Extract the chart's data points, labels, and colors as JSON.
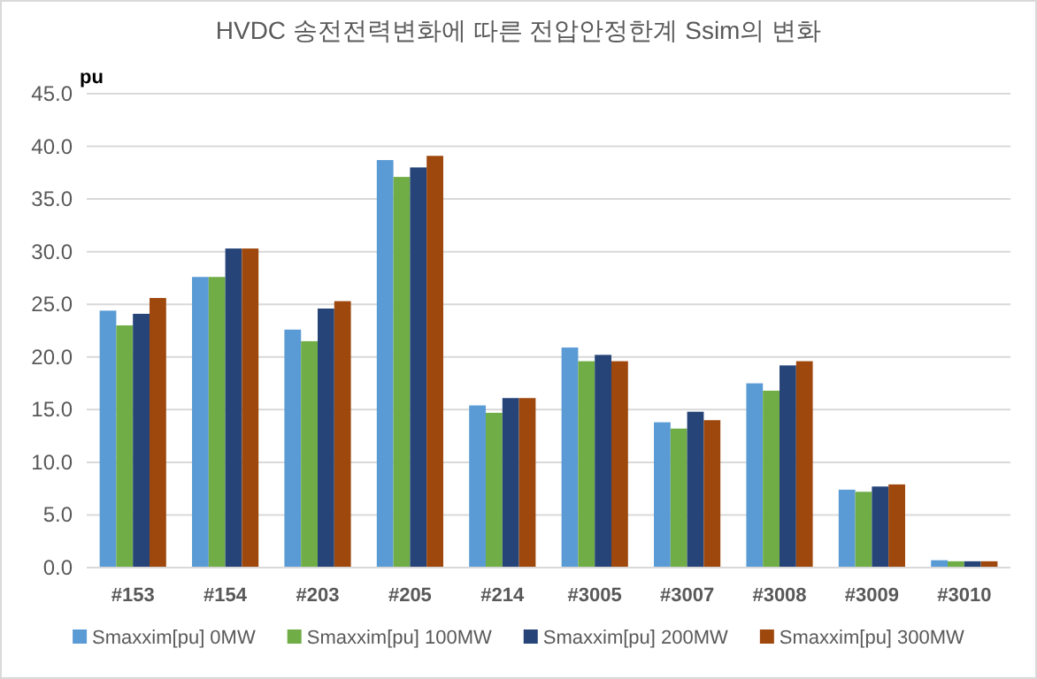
{
  "chart_data": {
    "type": "bar",
    "title": "HVDC 송전전력변화에 따른 전압안정한계 Ssim의 변화",
    "ylabel": "pu",
    "categories": [
      "#153",
      "#154",
      "#203",
      "#205",
      "#214",
      "#3005",
      "#3007",
      "#3008",
      "#3009",
      "#3010"
    ],
    "series": [
      {
        "name": "Smaxxim[pu] 0MW",
        "color": "#5b9bd5",
        "values": [
          24.4,
          27.6,
          22.6,
          38.7,
          15.4,
          20.9,
          13.8,
          17.5,
          7.4,
          0.7
        ]
      },
      {
        "name": "Smaxxim[pu] 100MW",
        "color": "#70ad47",
        "values": [
          23.0,
          27.6,
          21.5,
          37.1,
          14.7,
          19.6,
          13.2,
          16.8,
          7.2,
          0.6
        ]
      },
      {
        "name": "Smaxxim[pu] 200MW",
        "color": "#264478",
        "values": [
          24.1,
          30.3,
          24.6,
          38.0,
          16.1,
          20.2,
          14.8,
          19.2,
          7.7,
          0.6
        ]
      },
      {
        "name": "Smaxxim[pu] 300MW",
        "color": "#9e480e",
        "values": [
          25.6,
          30.3,
          25.3,
          39.1,
          16.1,
          19.6,
          14.0,
          19.6,
          7.9,
          0.6
        ]
      }
    ],
    "ylim": [
      0,
      45
    ],
    "yticks": [
      {
        "value": 0,
        "label": "0.0"
      },
      {
        "value": 5,
        "label": "5.0"
      },
      {
        "value": 10,
        "label": "10.0"
      },
      {
        "value": 15,
        "label": "15.0"
      },
      {
        "value": 20,
        "label": "20.0"
      },
      {
        "value": 25,
        "label": "25.0"
      },
      {
        "value": 30,
        "label": "30.0"
      },
      {
        "value": 35,
        "label": "35.0"
      },
      {
        "value": 40,
        "label": "40.0"
      },
      {
        "value": 45,
        "label": "45.0"
      }
    ],
    "grid": "y",
    "legend": "bottom"
  }
}
